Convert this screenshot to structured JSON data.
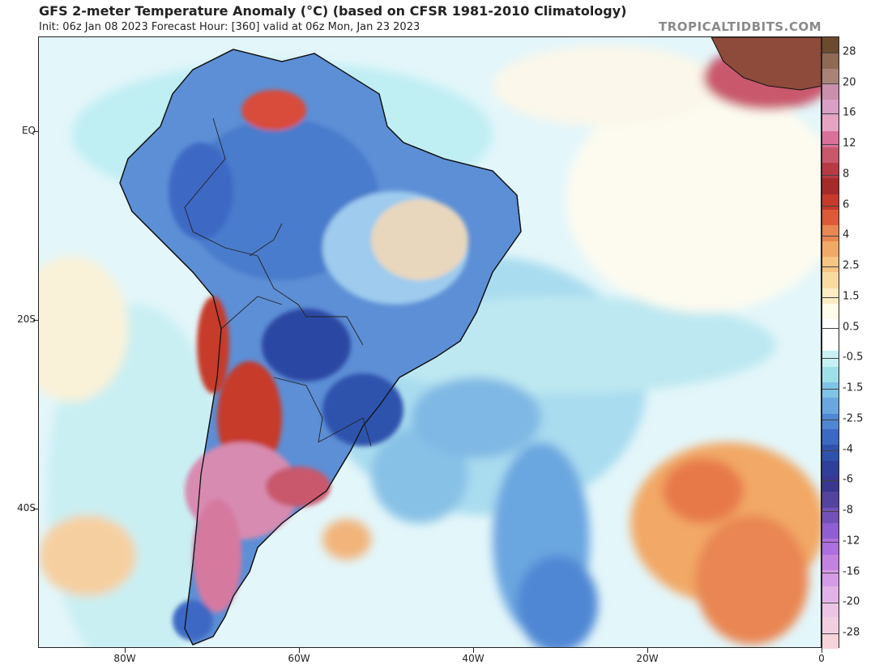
{
  "header": {
    "title": "GFS 2-meter Temperature Anomaly (°C) (based on CFSR 1981-2010 Climatology)",
    "subtitle": "Init: 06z Jan 08 2023   Forecast Hour: [360]   valid at 06z Mon, Jan 23 2023",
    "brand": "TROPICALTIDBITS.COM"
  },
  "map": {
    "lat_labels": [
      "EQ",
      "20S",
      "40S"
    ],
    "lon_labels": [
      "80W",
      "60W",
      "40W",
      "20W",
      "0"
    ]
  },
  "colorbar": {
    "labels": [
      "28",
      "20",
      "16",
      "12",
      "8",
      "6",
      "4",
      "2.5",
      "1.5",
      "0.5",
      "-0.5",
      "-1.5",
      "-2.5",
      "-4",
      "-6",
      "-8",
      "-12",
      "-16",
      "-20",
      "-28"
    ],
    "colors": [
      "#6b4a2f",
      "#8e6a55",
      "#a98378",
      "#c98fad",
      "#da9fc4",
      "#e6a3c2",
      "#d9709a",
      "#c9586d",
      "#b83a45",
      "#a52a2a",
      "#c63b2b",
      "#dd5a38",
      "#e98652",
      "#f2a866",
      "#f6c483",
      "#f9dba2",
      "#fbecc2",
      "#fffbea",
      "#ffffff",
      "#ffffff",
      "#c6f0f3",
      "#9fdfe8",
      "#7fc3e6",
      "#6aa6e0",
      "#4f87d4",
      "#3c69c4",
      "#2f52ad",
      "#2f3f9a",
      "#3a3791",
      "#54439f",
      "#7251b8",
      "#8f5ed2",
      "#ad6ee0",
      "#c482e0",
      "#d69be6",
      "#e2b2e8",
      "#ecc4e6",
      "#f2cfe0",
      "#f6d4d9"
    ]
  }
}
